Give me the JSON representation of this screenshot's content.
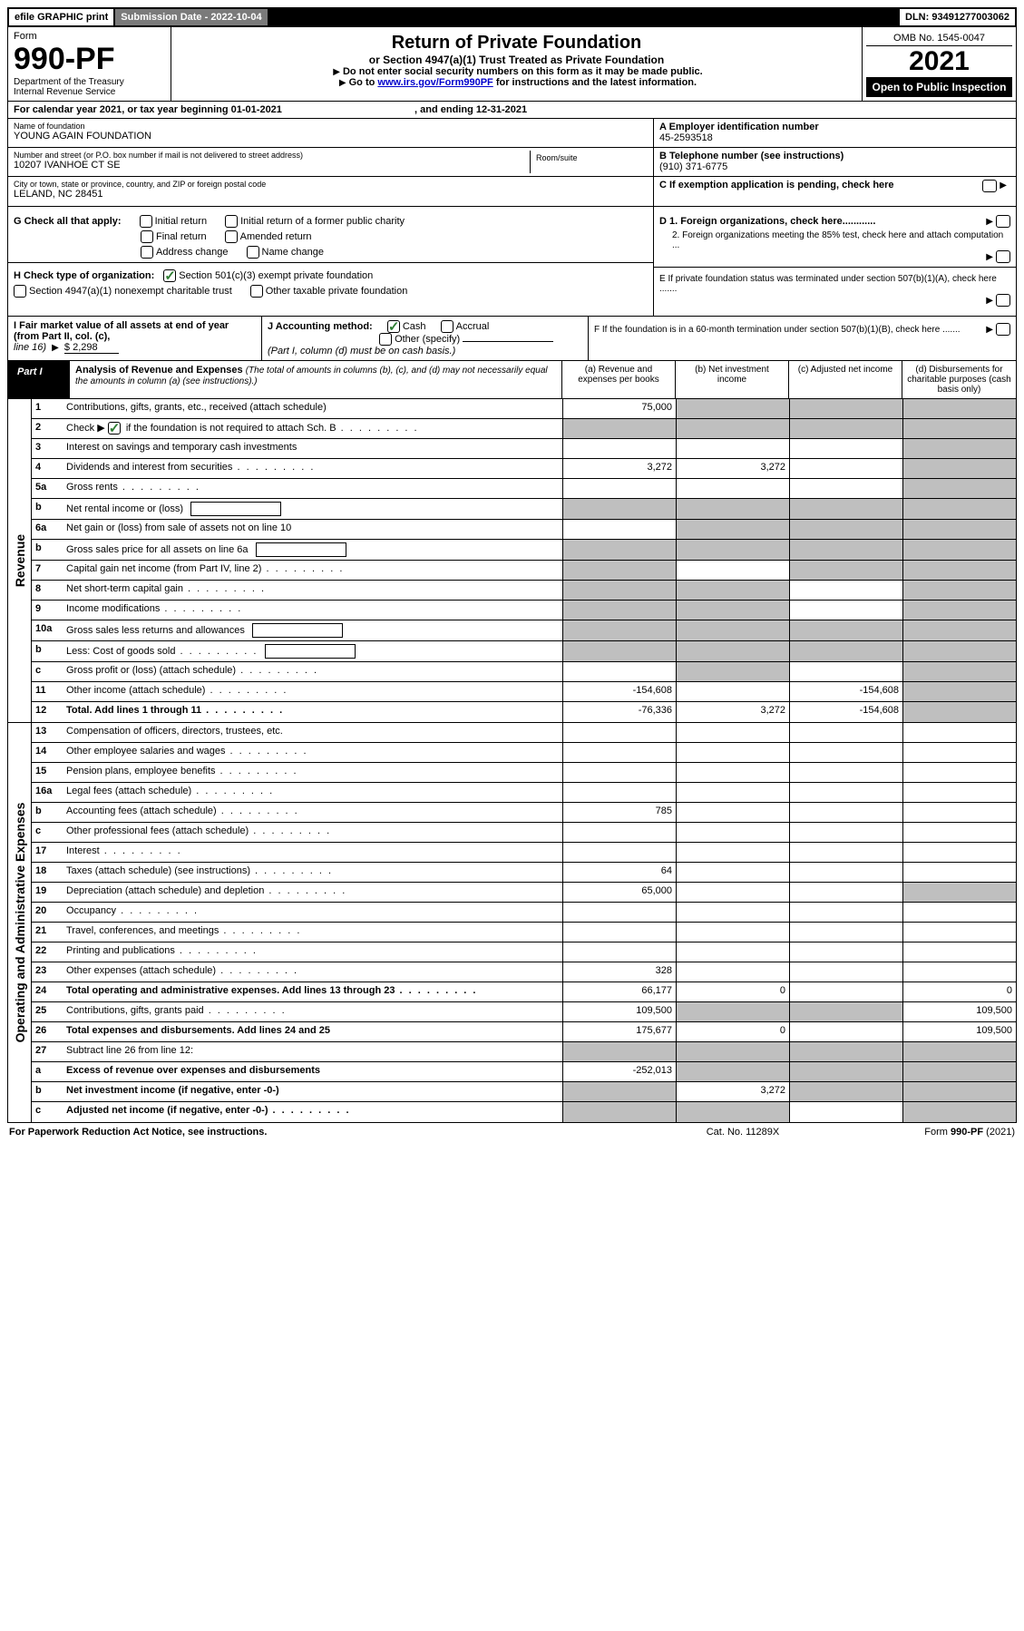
{
  "topbar": {
    "efile": "efile GRAPHIC print",
    "sub_label": "Submission Date - 2022-10-04",
    "dln": "DLN: 93491277003062"
  },
  "header": {
    "form_word": "Form",
    "form_num": "990-PF",
    "dept": "Department of the Treasury",
    "irs": "Internal Revenue Service",
    "title": "Return of Private Foundation",
    "subtitle": "or Section 4947(a)(1) Trust Treated as Private Foundation",
    "instr1": "Do not enter social security numbers on this form as it may be made public.",
    "instr2_pre": "Go to ",
    "instr2_link": "www.irs.gov/Form990PF",
    "instr2_post": " for instructions and the latest information.",
    "omb": "OMB No. 1545-0047",
    "year": "2021",
    "inspect": "Open to Public Inspection"
  },
  "cal": {
    "line": "For calendar year 2021, or tax year beginning 01-01-2021",
    "ending": ", and ending 12-31-2021"
  },
  "info": {
    "name_label": "Name of foundation",
    "name": "YOUNG AGAIN FOUNDATION",
    "addr_label": "Number and street (or P.O. box number if mail is not delivered to street address)",
    "addr": "10207 IVANHOE CT SE",
    "room_label": "Room/suite",
    "city_label": "City or town, state or province, country, and ZIP or foreign postal code",
    "city": "LELAND, NC  28451",
    "a_label": "A Employer identification number",
    "a_val": "45-2593518",
    "b_label": "B Telephone number (see instructions)",
    "b_val": "(910) 371-6775",
    "c_label": "C If exemption application is pending, check here"
  },
  "g": {
    "label": "G Check all that apply:",
    "opts": [
      "Initial return",
      "Initial return of a former public charity",
      "Final return",
      "Amended return",
      "Address change",
      "Name change"
    ]
  },
  "h": {
    "label": "H Check type of organization:",
    "opts": [
      "Section 501(c)(3) exempt private foundation",
      "Section 4947(a)(1) nonexempt charitable trust",
      "Other taxable private foundation"
    ],
    "checked": 0
  },
  "d": {
    "d1": "D 1. Foreign organizations, check here............",
    "d2": "2. Foreign organizations meeting the 85% test, check here and attach computation ...",
    "e": "E  If private foundation status was terminated under section 507(b)(1)(A), check here .......",
    "f": "F  If the foundation is in a 60-month termination under section 507(b)(1)(B), check here ......."
  },
  "i": {
    "label": "I Fair market value of all assets at end of year (from Part II, col. (c),",
    "line16": "line 16)",
    "val": "$  2,298"
  },
  "j": {
    "label": "J Accounting method:",
    "cash": "Cash",
    "accrual": "Accrual",
    "other": "Other (specify)",
    "note": "(Part I, column (d) must be on cash basis.)"
  },
  "part1": {
    "label": "Part I",
    "title": "Analysis of Revenue and Expenses",
    "title_note": " (The total of amounts in columns (b), (c), and (d) may not necessarily equal the amounts in column (a) (see instructions).)",
    "cols": {
      "a": "(a)   Revenue and expenses per books",
      "b": "(b)   Net investment income",
      "c": "(c)   Adjusted net income",
      "d": "(d)  Disbursements for charitable purposes (cash basis only)"
    }
  },
  "sides": {
    "rev": "Revenue",
    "exp": "Operating and Administrative Expenses"
  },
  "rows": [
    {
      "n": "1",
      "d": "Contributions, gifts, grants, etc., received (attach schedule)",
      "a": "75,000",
      "b": "s",
      "c": "s",
      "dd": "s"
    },
    {
      "n": "2",
      "d": "Check ▶ ☑ if the foundation is not required to attach Sch. B",
      "dots": 1,
      "a": "s",
      "b": "s",
      "c": "s",
      "dd": "s"
    },
    {
      "n": "3",
      "d": "Interest on savings and temporary cash investments",
      "a": "",
      "b": "",
      "c": "",
      "dd": "s"
    },
    {
      "n": "4",
      "d": "Dividends and interest from securities",
      "dots": 1,
      "a": "3,272",
      "b": "3,272",
      "c": "",
      "dd": "s"
    },
    {
      "n": "5a",
      "d": "Gross rents",
      "dots": 1,
      "a": "",
      "b": "",
      "c": "",
      "dd": "s"
    },
    {
      "n": "b",
      "d": "Net rental income or (loss)",
      "box": 1,
      "a": "s",
      "b": "s",
      "c": "s",
      "dd": "s"
    },
    {
      "n": "6a",
      "d": "Net gain or (loss) from sale of assets not on line 10",
      "a": "",
      "b": "s",
      "c": "s",
      "dd": "s"
    },
    {
      "n": "b",
      "d": "Gross sales price for all assets on line 6a",
      "box": 1,
      "a": "s",
      "b": "s",
      "c": "s",
      "dd": "s"
    },
    {
      "n": "7",
      "d": "Capital gain net income (from Part IV, line 2)",
      "dots": 1,
      "a": "s",
      "b": "",
      "c": "s",
      "dd": "s"
    },
    {
      "n": "8",
      "d": "Net short-term capital gain",
      "dots": 1,
      "a": "s",
      "b": "s",
      "c": "",
      "dd": "s"
    },
    {
      "n": "9",
      "d": "Income modifications",
      "dots": 1,
      "a": "s",
      "b": "s",
      "c": "",
      "dd": "s"
    },
    {
      "n": "10a",
      "d": "Gross sales less returns and allowances",
      "box": 1,
      "a": "s",
      "b": "s",
      "c": "s",
      "dd": "s"
    },
    {
      "n": "b",
      "d": "Less: Cost of goods sold",
      "dots": 1,
      "box": 1,
      "a": "s",
      "b": "s",
      "c": "s",
      "dd": "s"
    },
    {
      "n": "c",
      "d": "Gross profit or (loss) (attach schedule)",
      "dots": 1,
      "a": "",
      "b": "s",
      "c": "",
      "dd": "s"
    },
    {
      "n": "11",
      "d": "Other income (attach schedule)",
      "dots": 1,
      "a": "-154,608",
      "b": "",
      "c": "-154,608",
      "dd": "s"
    },
    {
      "n": "12",
      "d": "Total. Add lines 1 through 11",
      "dots": 1,
      "bold": 1,
      "a": "-76,336",
      "b": "3,272",
      "c": "-154,608",
      "dd": "s"
    }
  ],
  "exp_rows": [
    {
      "n": "13",
      "d": "Compensation of officers, directors, trustees, etc.",
      "a": "",
      "b": "",
      "c": "",
      "dd": ""
    },
    {
      "n": "14",
      "d": "Other employee salaries and wages",
      "dots": 1,
      "a": "",
      "b": "",
      "c": "",
      "dd": ""
    },
    {
      "n": "15",
      "d": "Pension plans, employee benefits",
      "dots": 1,
      "a": "",
      "b": "",
      "c": "",
      "dd": ""
    },
    {
      "n": "16a",
      "d": "Legal fees (attach schedule)",
      "dots": 1,
      "a": "",
      "b": "",
      "c": "",
      "dd": ""
    },
    {
      "n": "b",
      "d": "Accounting fees (attach schedule)",
      "dots": 1,
      "a": "785",
      "b": "",
      "c": "",
      "dd": ""
    },
    {
      "n": "c",
      "d": "Other professional fees (attach schedule)",
      "dots": 1,
      "a": "",
      "b": "",
      "c": "",
      "dd": ""
    },
    {
      "n": "17",
      "d": "Interest",
      "dots": 1,
      "a": "",
      "b": "",
      "c": "",
      "dd": ""
    },
    {
      "n": "18",
      "d": "Taxes (attach schedule) (see instructions)",
      "dots": 1,
      "a": "64",
      "b": "",
      "c": "",
      "dd": ""
    },
    {
      "n": "19",
      "d": "Depreciation (attach schedule) and depletion",
      "dots": 1,
      "a": "65,000",
      "b": "",
      "c": "",
      "dd": "s"
    },
    {
      "n": "20",
      "d": "Occupancy",
      "dots": 1,
      "a": "",
      "b": "",
      "c": "",
      "dd": ""
    },
    {
      "n": "21",
      "d": "Travel, conferences, and meetings",
      "dots": 1,
      "a": "",
      "b": "",
      "c": "",
      "dd": ""
    },
    {
      "n": "22",
      "d": "Printing and publications",
      "dots": 1,
      "a": "",
      "b": "",
      "c": "",
      "dd": ""
    },
    {
      "n": "23",
      "d": "Other expenses (attach schedule)",
      "dots": 1,
      "a": "328",
      "b": "",
      "c": "",
      "dd": ""
    },
    {
      "n": "24",
      "d": "Total operating and administrative expenses. Add lines 13 through 23",
      "dots": 1,
      "bold": 1,
      "a": "66,177",
      "b": "0",
      "c": "",
      "dd": "0"
    },
    {
      "n": "25",
      "d": "Contributions, gifts, grants paid",
      "dots": 1,
      "a": "109,500",
      "b": "s",
      "c": "s",
      "dd": "109,500"
    },
    {
      "n": "26",
      "d": "Total expenses and disbursements. Add lines 24 and 25",
      "bold": 1,
      "a": "175,677",
      "b": "0",
      "c": "",
      "dd": "109,500"
    },
    {
      "n": "27",
      "d": "Subtract line 26 from line 12:",
      "a": "s",
      "b": "s",
      "c": "s",
      "dd": "s"
    },
    {
      "n": "a",
      "d": "Excess of revenue over expenses and disbursements",
      "bold": 1,
      "a": "-252,013",
      "b": "s",
      "c": "s",
      "dd": "s"
    },
    {
      "n": "b",
      "d": "Net investment income (if negative, enter -0-)",
      "bold": 1,
      "a": "s",
      "b": "3,272",
      "c": "s",
      "dd": "s"
    },
    {
      "n": "c",
      "d": "Adjusted net income (if negative, enter -0-)",
      "dots": 1,
      "bold": 1,
      "a": "s",
      "b": "s",
      "c": "",
      "dd": "s"
    }
  ],
  "footer": {
    "left": "For Paperwork Reduction Act Notice, see instructions.",
    "mid": "Cat. No. 11289X",
    "right": "Form 990-PF (2021)"
  },
  "colors": {
    "shaded": "#bfbfbf",
    "link": "#0000cc",
    "check": "#2e7d32"
  }
}
